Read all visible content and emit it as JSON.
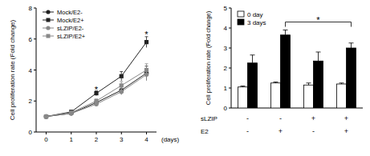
{
  "chart_data": [
    {
      "type": "line",
      "x": [
        0,
        1,
        2,
        3,
        4
      ],
      "x_label": "(days)",
      "y_label": "Cell proliferation rate (Fold change)",
      "xlim": [
        -0.4,
        4.4
      ],
      "xticks": [
        0,
        1,
        2,
        3,
        4
      ],
      "ylim": [
        0,
        8
      ],
      "yticks": [
        0,
        2,
        4,
        6,
        8
      ],
      "legend": "top-left",
      "series": [
        {
          "name": "Mock/E2-",
          "color": "#222222",
          "marker": "circle",
          "values": [
            1,
            1.2,
            1.9,
            2.7,
            3.8
          ],
          "errors": [
            0.05,
            0.08,
            0.12,
            0.25,
            0.45
          ]
        },
        {
          "name": "Mock/E2+",
          "color": "#222222",
          "marker": "square",
          "values": [
            1,
            1.3,
            2.5,
            3.6,
            5.8
          ],
          "errors": [
            0.05,
            0.08,
            0.15,
            0.3,
            0.35
          ]
        },
        {
          "name": "sLZIP/E2-",
          "color": "#888888",
          "marker": "circle",
          "values": [
            1,
            1.2,
            1.8,
            2.6,
            3.7
          ],
          "errors": [
            0.05,
            0.08,
            0.12,
            0.2,
            0.4
          ]
        },
        {
          "name": "sLZIP/E2+",
          "color": "#888888",
          "marker": "square",
          "values": [
            1,
            1.25,
            2.0,
            3.0,
            4.0
          ],
          "errors": [
            0.05,
            0.08,
            0.12,
            0.25,
            0.4
          ]
        }
      ],
      "annotations": [
        {
          "text": "*",
          "x": 2,
          "y": 2.75
        },
        {
          "text": "*",
          "x": 4,
          "y": 6.3
        }
      ]
    },
    {
      "type": "bar",
      "categories": [
        null,
        null,
        null,
        null
      ],
      "conditions": [
        {
          "name": "sLZIP",
          "labels": [
            "-",
            "-",
            "+",
            "+"
          ]
        },
        {
          "name": "E2",
          "labels": [
            "-",
            "+",
            "-",
            "+"
          ]
        }
      ],
      "y_label": "Cell proliferation rate (Fold change)",
      "ylim": [
        0,
        5
      ],
      "yticks": [
        0,
        1,
        2,
        3,
        4,
        5
      ],
      "legend": "top-left",
      "series": [
        {
          "name": "0 day",
          "color": "#ffffff",
          "values": [
            1.05,
            1.25,
            1.15,
            1.2
          ],
          "errors": [
            0.05,
            0.05,
            0.1,
            0.05
          ]
        },
        {
          "name": "3 days",
          "color": "#000000",
          "values": [
            2.25,
            3.65,
            2.35,
            3.0
          ],
          "errors": [
            0.4,
            0.25,
            0.45,
            0.25
          ]
        }
      ],
      "annotations": [
        {
          "text": "*",
          "from": 1,
          "to": 3,
          "y": 4.3
        }
      ]
    }
  ]
}
